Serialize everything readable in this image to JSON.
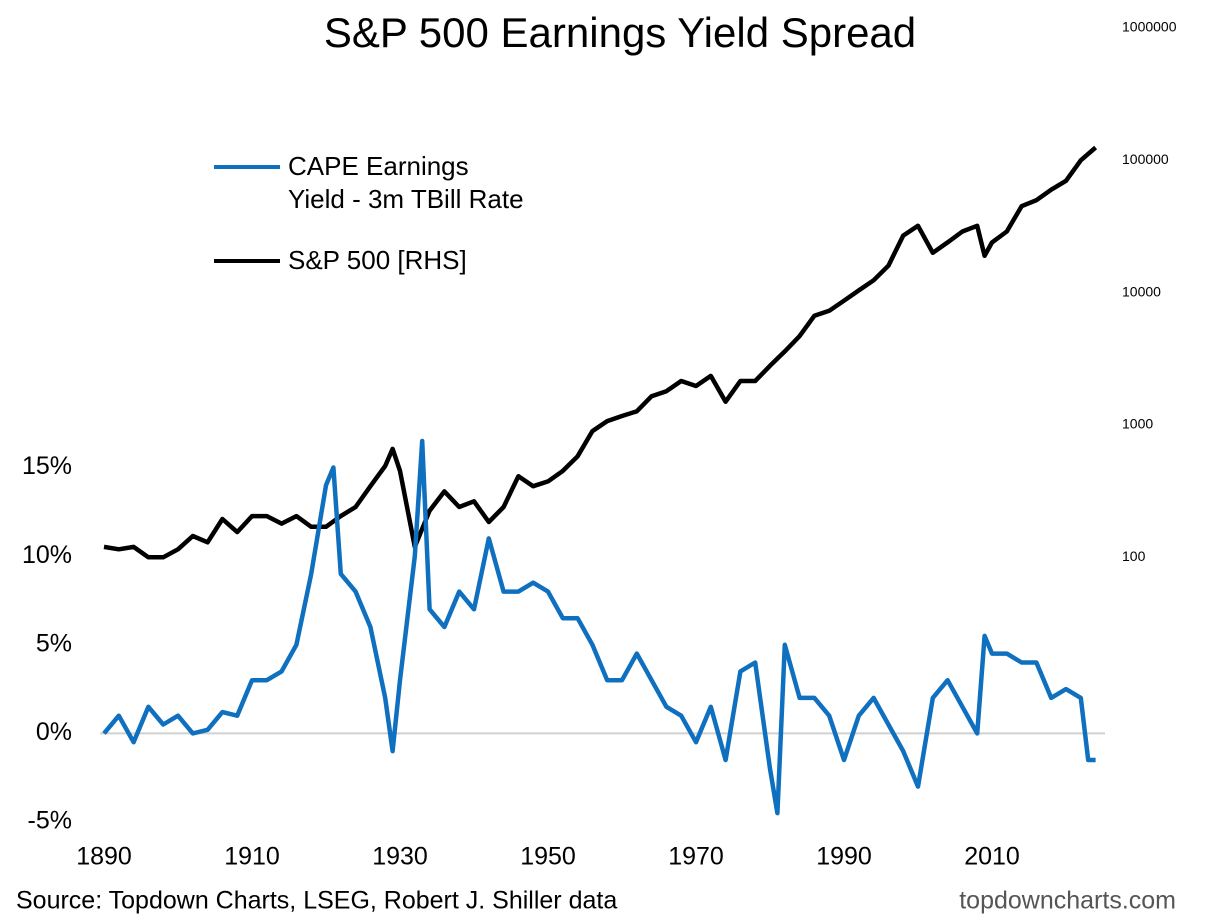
{
  "chart_data": {
    "type": "line",
    "title": "S&P 500 Earnings Yield Spread",
    "source": "Source: Topdown Charts, LSEG, Robert J. Shiller data",
    "watermark": "topdowncharts.com",
    "xlim": [
      1888,
      2027
    ],
    "xticks": [
      1890,
      1910,
      1930,
      1950,
      1970,
      1990,
      2010
    ],
    "ylim": [
      -5,
      39.8
    ],
    "yticks": [
      {
        "value": -5,
        "label": "-5%"
      },
      {
        "value": 0,
        "label": "0%"
      },
      {
        "value": 5,
        "label": "5%"
      },
      {
        "value": 10,
        "label": "10%"
      },
      {
        "value": 15,
        "label": "15%"
      }
    ],
    "y2lim": [
      1,
      1000000
    ],
    "y2log": true,
    "y2ticks": [
      100,
      1000,
      10000,
      100000,
      1000000
    ],
    "zero_line": true,
    "legend": "upper-left",
    "series": [
      {
        "name": "CAPE Earnings\nYield - 3m TBill Rate",
        "color": "#1070c0",
        "x": [
          1890,
          1892,
          1894,
          1896,
          1898,
          1900,
          1902,
          1904,
          1906,
          1908,
          1910,
          1912,
          1914,
          1916,
          1918,
          1920,
          1921,
          1922,
          1924,
          1926,
          1928,
          1929,
          1930,
          1932,
          1933,
          1934,
          1936,
          1938,
          1940,
          1942,
          1944,
          1946,
          1948,
          1950,
          1952,
          1954,
          1956,
          1958,
          1960,
          1962,
          1964,
          1966,
          1968,
          1970,
          1972,
          1974,
          1976,
          1978,
          1980,
          1981,
          1982,
          1984,
          1986,
          1988,
          1990,
          1992,
          1994,
          1996,
          1998,
          2000,
          2002,
          2004,
          2006,
          2008,
          2009,
          2010,
          2012,
          2014,
          2016,
          2018,
          2020,
          2022,
          2023,
          2024
        ],
        "values": [
          0,
          1,
          -0.5,
          1.5,
          0.5,
          1,
          0,
          0.2,
          1.2,
          1,
          3,
          3,
          3.5,
          5,
          9,
          14,
          15,
          9,
          8,
          6,
          2,
          -1,
          3,
          10,
          16.5,
          7,
          6,
          8,
          7,
          11,
          8,
          8,
          8.5,
          8,
          6.5,
          6.5,
          5,
          3,
          3,
          4.5,
          3,
          1.5,
          1,
          -0.5,
          1.5,
          -1.5,
          3.5,
          4,
          -2,
          -4.5,
          5,
          2,
          2,
          1,
          -1.5,
          1,
          2,
          0.5,
          -1,
          -3,
          2,
          3,
          1.5,
          0,
          5.5,
          4.5,
          4.5,
          4,
          4,
          2,
          2.5,
          2,
          -1.5,
          -1.5
        ]
      },
      {
        "name": "S&P 500 [RHS]",
        "color": "#000000",
        "axis": "y2",
        "x": [
          1890,
          1892,
          1894,
          1896,
          1898,
          1900,
          1902,
          1904,
          1906,
          1908,
          1910,
          1912,
          1914,
          1916,
          1918,
          1920,
          1922,
          1924,
          1926,
          1928,
          1929,
          1930,
          1932,
          1934,
          1936,
          1938,
          1940,
          1942,
          1944,
          1946,
          1948,
          1950,
          1952,
          1954,
          1956,
          1958,
          1960,
          1962,
          1964,
          1966,
          1968,
          1970,
          1972,
          1974,
          1976,
          1978,
          1980,
          1982,
          1984,
          1986,
          1988,
          1990,
          1992,
          1994,
          1996,
          1998,
          2000,
          2002,
          2004,
          2006,
          2008,
          2009,
          2010,
          2012,
          2014,
          2016,
          2018,
          2020,
          2022,
          2024
        ],
        "values": [
          120,
          115,
          120,
          100,
          100,
          115,
          145,
          130,
          195,
          155,
          205,
          205,
          180,
          205,
          170,
          170,
          205,
          240,
          345,
          490,
          660,
          450,
          120,
          225,
          315,
          240,
          265,
          185,
          240,
          410,
          345,
          375,
          450,
          580,
          900,
          1070,
          1170,
          1270,
          1650,
          1800,
          2150,
          1970,
          2350,
          1500,
          2150,
          2150,
          2800,
          3600,
          4700,
          6700,
          7300,
          8700,
          10400,
          12400,
          16000,
          27000,
          32000,
          20000,
          24000,
          29000,
          32000,
          19000,
          24000,
          29000,
          45000,
          50000,
          60000,
          70000,
          100000,
          125000
        ]
      }
    ]
  }
}
